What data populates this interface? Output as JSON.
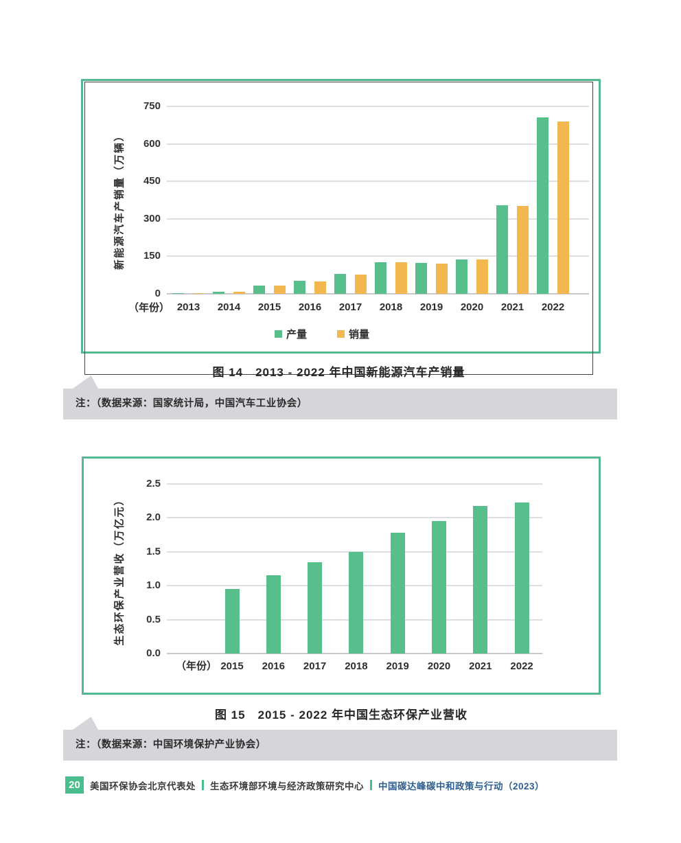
{
  "colors": {
    "bar_green": "#57be8c",
    "bar_orange": "#f2b84f",
    "frame_green": "#54b991",
    "note_gray": "#d6d6da",
    "footer_green": "#4abd8e",
    "footer_blue": "#2e5f90"
  },
  "chart_data": [
    {
      "type": "bar",
      "title": "图 14　2013 - 2022 年中国新能源汽车产销量",
      "ylabel": "新能源汽车产销量（万辆）",
      "xlabel": "（年份）",
      "categories": [
        "2013",
        "2014",
        "2015",
        "2016",
        "2017",
        "2018",
        "2019",
        "2020",
        "2021",
        "2022"
      ],
      "series": [
        {
          "name": "产量",
          "color": "#57be8c",
          "values": [
            1.8,
            7.8,
            34.0,
            51.7,
            79.4,
            127.0,
            124.2,
            136.6,
            354.5,
            705.8
          ]
        },
        {
          "name": "销量",
          "color": "#f2b84f",
          "values": [
            1.8,
            7.5,
            33.1,
            50.7,
            77.7,
            125.6,
            120.6,
            136.7,
            352.1,
            688.7
          ]
        }
      ],
      "ylim": [
        0,
        750
      ],
      "yticks": [
        0,
        150,
        300,
        450,
        600,
        750
      ],
      "ytick_labels": [
        "0",
        "150",
        "300",
        "450",
        "600",
        "750"
      ],
      "grid": true,
      "legend_position": "bottom"
    },
    {
      "type": "bar",
      "title": "图 15　2015 - 2022 年中国生态环保产业营收",
      "ylabel": "生态环保产业营收（万亿元）",
      "xlabel": "（年份）",
      "categories": [
        "2015",
        "2016",
        "2017",
        "2018",
        "2019",
        "2020",
        "2021",
        "2022"
      ],
      "series": [
        {
          "name": "生态环保产业营收",
          "color": "#57be8c",
          "values": [
            0.95,
            1.15,
            1.35,
            1.5,
            1.78,
            1.95,
            2.18,
            2.23
          ]
        }
      ],
      "ylim": [
        0,
        2.5
      ],
      "yticks": [
        0,
        0.5,
        1.0,
        1.5,
        2.0,
        2.5
      ],
      "ytick_labels": [
        "0.0",
        "0.5",
        "1.0",
        "1.5",
        "2.0",
        "2.5"
      ],
      "grid": true,
      "legend_position": "none"
    }
  ],
  "notes": {
    "note1": "注：（数据来源：国家统计局，中国汽车工业协会）",
    "note2": "注：（数据来源：中国环境保护产业协会）"
  },
  "footer": {
    "page_number": "20",
    "org1": "美国环保协会北京代表处",
    "org2": "生态环境部环境与经济政策研究中心",
    "report": "中国碳达峰碳中和政策与行动（2023）"
  }
}
